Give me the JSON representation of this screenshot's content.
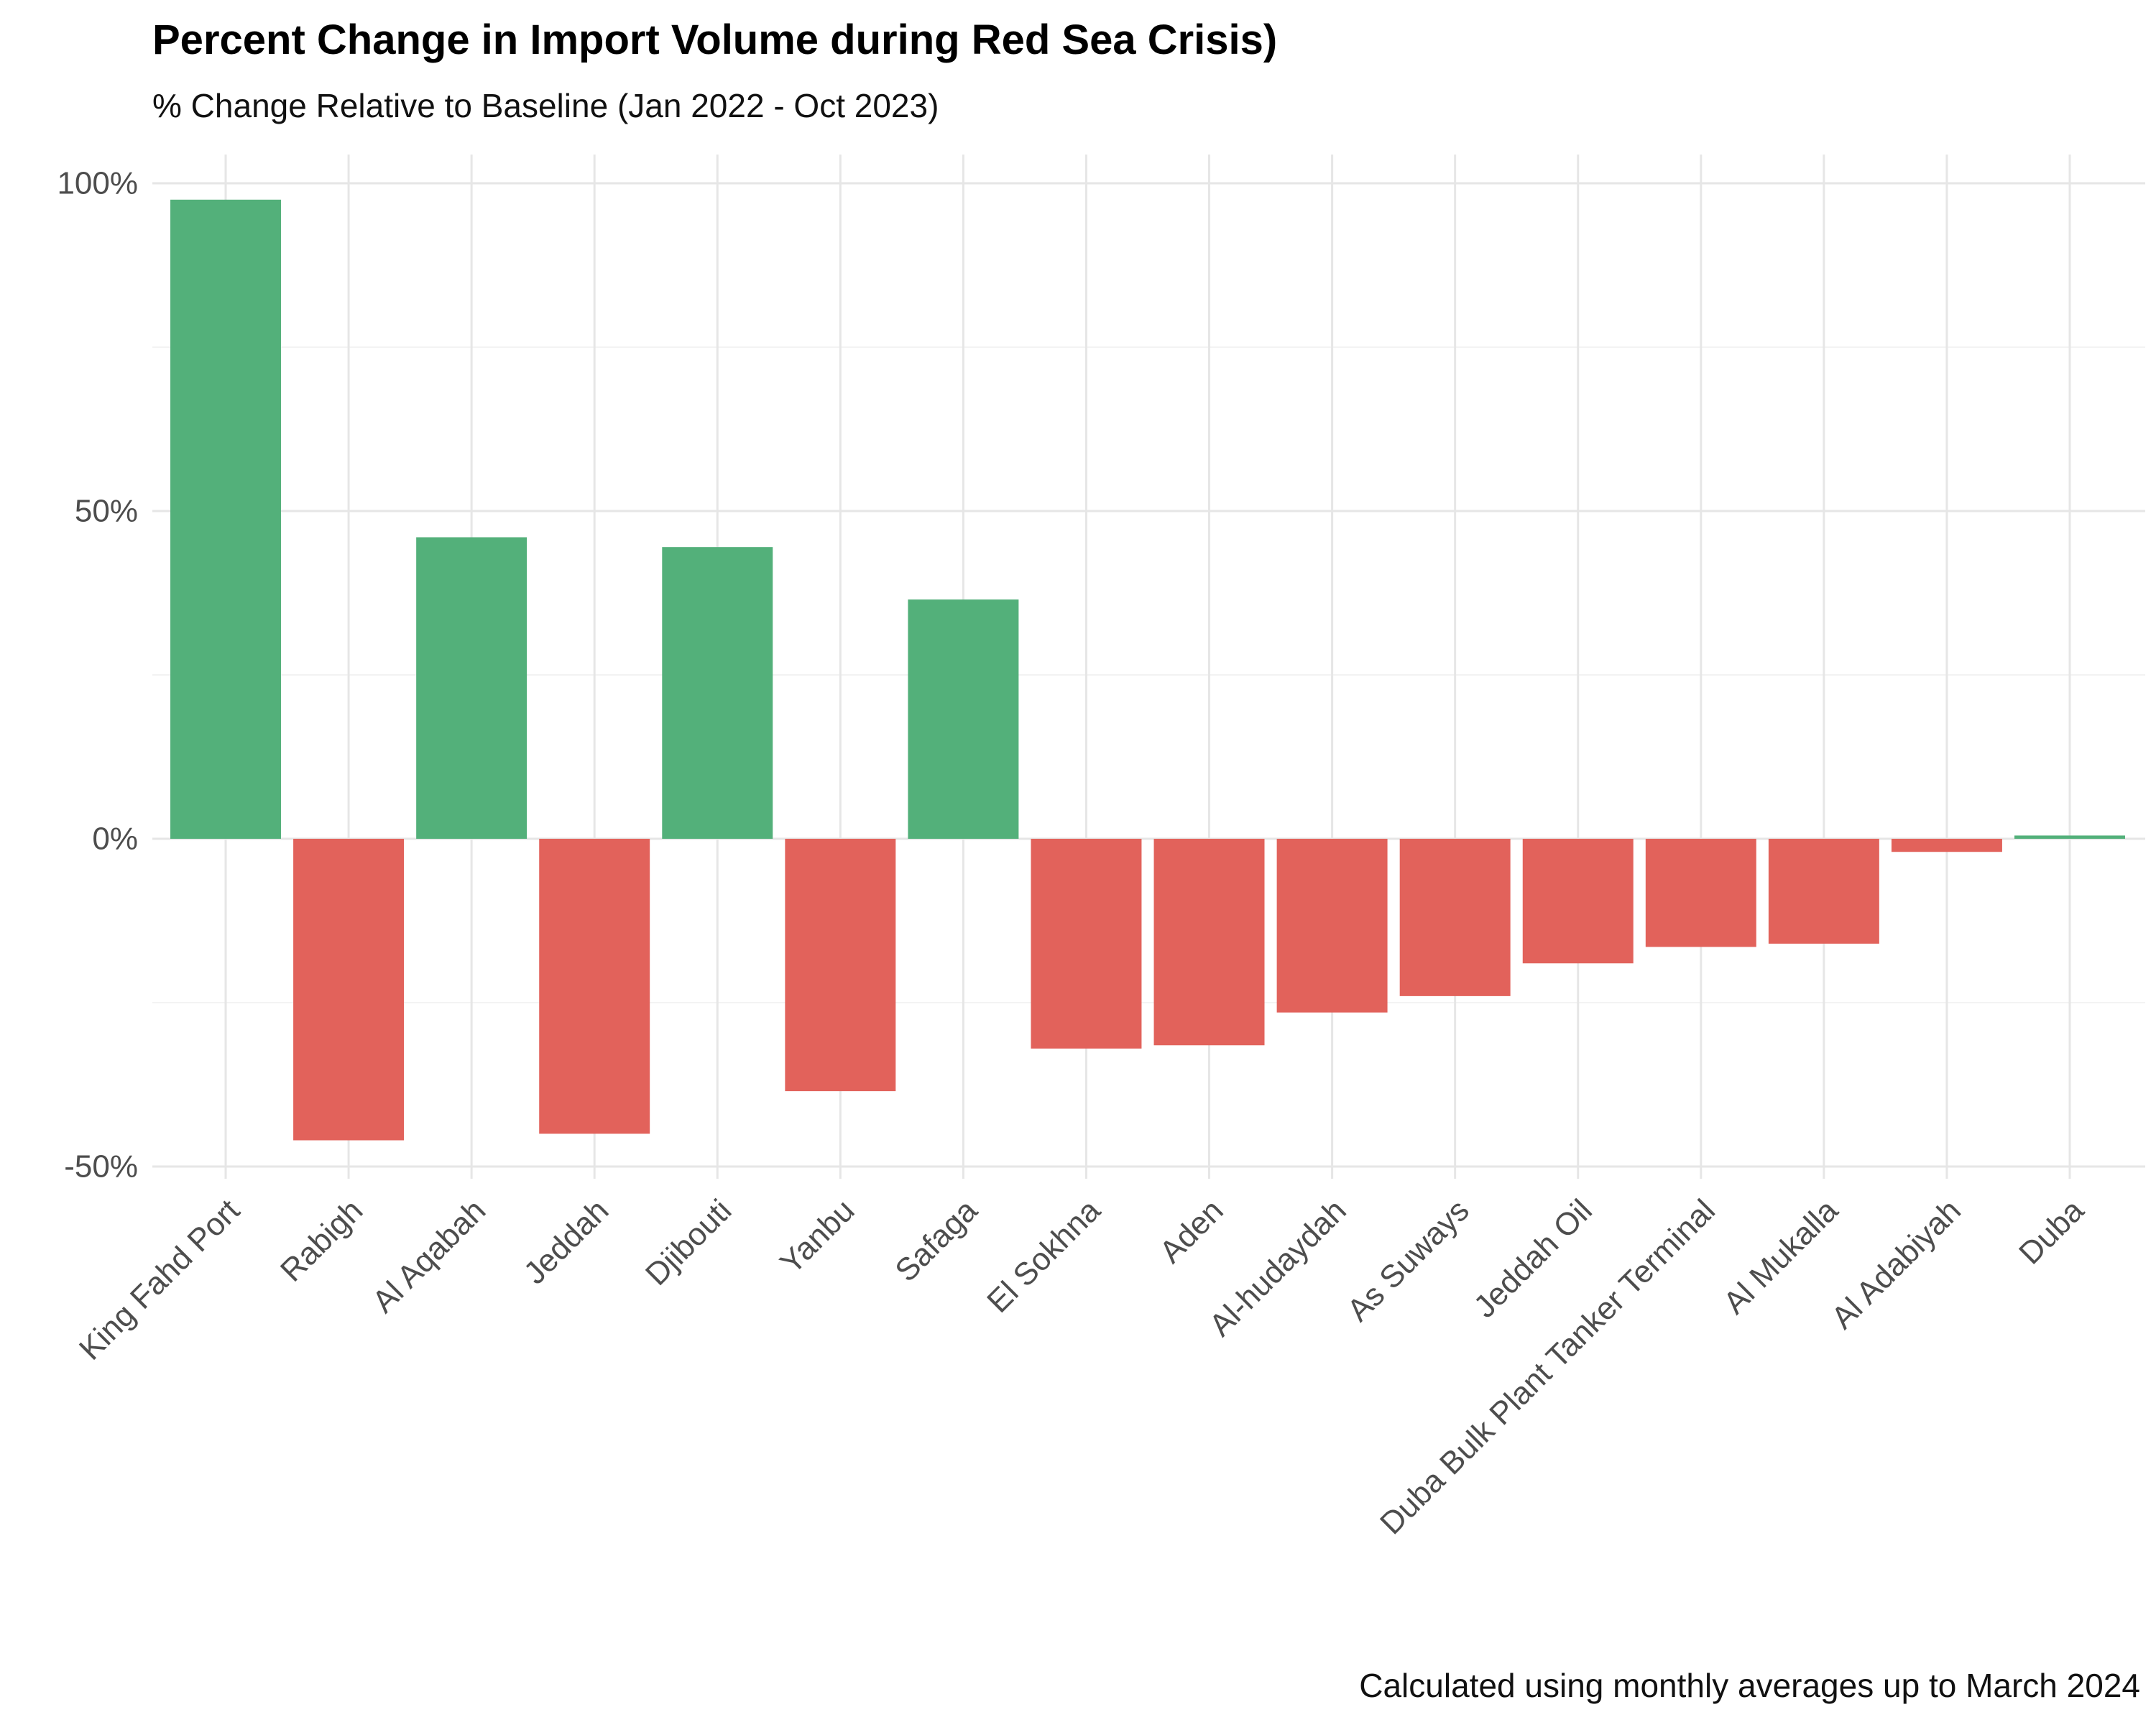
{
  "chart_data": {
    "type": "bar",
    "title": "Percent Change in Import Volume during Red Sea Crisis)",
    "subtitle": "% Change Relative to Baseline (Jan 2022 - Oct 2023)",
    "caption": "Calculated using monthly averages up to March 2024",
    "xlabel": "",
    "ylabel": "",
    "categories": [
      "King Fahd Port",
      "Rabigh",
      "Al Aqabah",
      "Jeddah",
      "Djibouti",
      "Yanbu",
      "Safaga",
      "El Sokhna",
      "Aden",
      "Al-hudaydah",
      "As Suways",
      "Jeddah Oil",
      "Duba Bulk Plant Tanker Terminal",
      "Al Mukalla",
      "Al Adabiyah",
      "Duba"
    ],
    "values": [
      97.5,
      -46,
      46,
      -45,
      44.5,
      -38.5,
      36.5,
      -32,
      -31.5,
      -26.5,
      -24,
      -19,
      -16.5,
      -16,
      -2,
      0.5
    ],
    "ylim": [
      -50,
      100
    ],
    "yticks": [
      100,
      50,
      0,
      -50
    ],
    "ytick_labels": [
      "100%",
      "50%",
      "0%",
      "-50%"
    ],
    "grid": true,
    "legend": "none",
    "colors": {
      "positive": "#53B07A",
      "negative": "#E2625B"
    }
  }
}
